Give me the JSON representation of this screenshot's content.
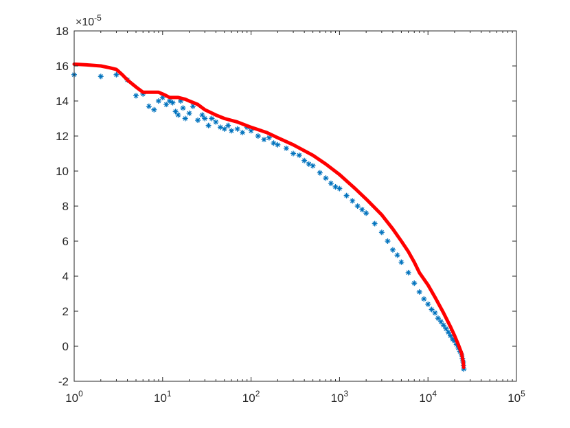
{
  "chart_data": {
    "type": "scatter",
    "title": "",
    "xlabel": "",
    "ylabel": "",
    "x_scale": "log",
    "xlim": [
      1,
      100000
    ],
    "ylim": [
      -2,
      18
    ],
    "y_multiplier_label": "×10",
    "y_multiplier_exponent": "-5",
    "grid": false,
    "legend": "none",
    "x_ticks": [
      {
        "value": 1,
        "base": "10",
        "exp": "0"
      },
      {
        "value": 10,
        "base": "10",
        "exp": "1"
      },
      {
        "value": 100,
        "base": "10",
        "exp": "2"
      },
      {
        "value": 1000,
        "base": "10",
        "exp": "3"
      },
      {
        "value": 10000,
        "base": "10",
        "exp": "4"
      },
      {
        "value": 100000,
        "base": "10",
        "exp": "5"
      }
    ],
    "y_ticks": [
      {
        "value": -2,
        "label": "-2"
      },
      {
        "value": 0,
        "label": "0"
      },
      {
        "value": 2,
        "label": "2"
      },
      {
        "value": 4,
        "label": "4"
      },
      {
        "value": 6,
        "label": "6"
      },
      {
        "value": 8,
        "label": "8"
      },
      {
        "value": 10,
        "label": "10"
      },
      {
        "value": 12,
        "label": "12"
      },
      {
        "value": 14,
        "label": "14"
      },
      {
        "value": 16,
        "label": "16"
      },
      {
        "value": 18,
        "label": "18"
      }
    ],
    "series": [
      {
        "kind": "scatter",
        "marker": "asterisk",
        "color": "#0072BD",
        "x": [
          1,
          2,
          3,
          4,
          5,
          6,
          7,
          8,
          9,
          10,
          11,
          12,
          13,
          14,
          15,
          16,
          17,
          18,
          20,
          22,
          25,
          28,
          30,
          33,
          36,
          40,
          45,
          50,
          55,
          60,
          70,
          80,
          90,
          100,
          120,
          140,
          160,
          180,
          200,
          250,
          300,
          350,
          400,
          450,
          500,
          600,
          700,
          800,
          900,
          1000,
          1200,
          1400,
          1600,
          1800,
          2000,
          2500,
          3000,
          3500,
          4000,
          4500,
          5000,
          6000,
          7000,
          8000,
          9000,
          10000,
          11000,
          12000,
          13000,
          14000,
          15000,
          16000,
          17000,
          18000,
          19000,
          20000,
          21000,
          22000,
          23000,
          24000,
          24500,
          25000,
          25200,
          25400
        ],
        "y": [
          15.5,
          15.4,
          15.5,
          15.2,
          14.3,
          14.4,
          13.7,
          13.5,
          14.0,
          14.2,
          13.8,
          14.0,
          13.9,
          13.4,
          13.2,
          14.0,
          13.6,
          13.0,
          13.3,
          13.7,
          12.9,
          13.2,
          13.0,
          12.6,
          13.0,
          12.8,
          12.5,
          12.4,
          12.6,
          12.3,
          12.4,
          12.2,
          12.5,
          12.3,
          12.0,
          11.8,
          11.9,
          11.6,
          11.5,
          11.3,
          11.0,
          10.9,
          10.6,
          10.4,
          10.3,
          9.9,
          9.6,
          9.3,
          9.1,
          9.0,
          8.6,
          8.3,
          8.0,
          7.8,
          7.6,
          7.0,
          6.5,
          6.0,
          5.5,
          5.2,
          4.8,
          4.2,
          3.6,
          3.1,
          2.7,
          2.4,
          2.1,
          1.9,
          1.6,
          1.4,
          1.2,
          1.0,
          0.8,
          0.6,
          0.4,
          0.3,
          0.1,
          -0.1,
          -0.3,
          -0.5,
          -0.7,
          -0.9,
          -1.1,
          -1.3
        ]
      },
      {
        "kind": "line",
        "color": "#FF0000",
        "x": [
          1,
          1.5,
          2,
          2.5,
          3,
          3.5,
          4,
          5,
          6,
          7,
          8,
          9,
          10,
          11,
          12,
          15,
          18,
          20,
          25,
          30,
          40,
          50,
          70,
          100,
          150,
          200,
          300,
          500,
          700,
          1000,
          1500,
          2000,
          3000,
          4000,
          5000,
          6000,
          7000,
          8000,
          10000,
          12000,
          15000,
          18000,
          20000,
          22000,
          24000,
          25000,
          25300
        ],
        "y": [
          16.1,
          16.05,
          16.0,
          15.9,
          15.8,
          15.5,
          15.2,
          14.8,
          14.5,
          14.5,
          14.5,
          14.5,
          14.4,
          14.3,
          14.2,
          14.2,
          14.1,
          14.0,
          13.8,
          13.5,
          13.2,
          13.0,
          12.8,
          12.5,
          12.2,
          11.9,
          11.5,
          10.9,
          10.4,
          9.8,
          9.0,
          8.4,
          7.5,
          6.7,
          6.0,
          5.4,
          4.8,
          4.2,
          3.5,
          2.8,
          1.9,
          1.1,
          0.6,
          0.1,
          -0.4,
          -0.9,
          -1.2
        ]
      }
    ]
  }
}
